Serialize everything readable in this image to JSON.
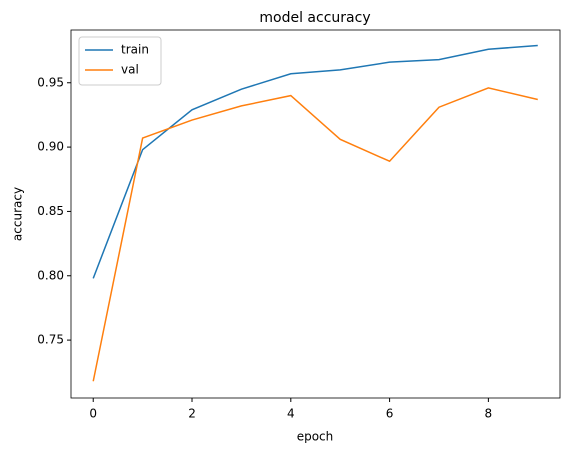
{
  "chart_data": {
    "type": "line",
    "title": "model accuracy",
    "x_label": "epoch",
    "y_label": "accuracy",
    "x": [
      0,
      1,
      2,
      3,
      4,
      5,
      6,
      7,
      8,
      9
    ],
    "series": [
      {
        "name": "train",
        "color": "#1f77b4",
        "values": [
          0.798,
          0.898,
          0.929,
          0.945,
          0.957,
          0.96,
          0.966,
          0.968,
          0.976,
          0.979
        ]
      },
      {
        "name": "val",
        "color": "#ff7f0e",
        "values": [
          0.718,
          0.907,
          0.921,
          0.932,
          0.94,
          0.906,
          0.889,
          0.931,
          0.946,
          0.937
        ]
      }
    ],
    "xlim": [
      -0.45,
      9.45
    ],
    "ylim": [
      0.705,
      0.991
    ],
    "xticks": [
      0,
      2,
      4,
      6,
      8
    ],
    "yticks": [
      0.75,
      {
        "value": 0.8,
        "label": "0.80"
      },
      0.85,
      {
        "value": 0.9,
        "label": "0.90"
      },
      0.95
    ],
    "legend": "upper left",
    "grid": false
  }
}
